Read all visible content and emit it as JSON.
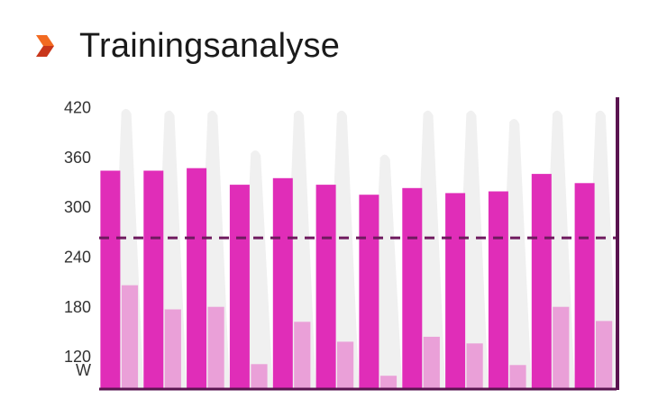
{
  "header": {
    "title": "Trainingsanalyse",
    "icon": "chevron-right-icon"
  },
  "colors": {
    "bar_primary": "#e02db8",
    "bar_secondary": "#eaa0d8",
    "ghost": "#f0f0f0",
    "threshold": "#6e1a5e",
    "axis": "#5a1450",
    "icon_top": "#f26a21",
    "icon_bottom": "#c8361b"
  },
  "chart_data": {
    "type": "bar",
    "unit": "W",
    "yticks": [
      120,
      180,
      240,
      300,
      360,
      420
    ],
    "ylim": [
      80,
      440
    ],
    "threshold": 262,
    "series": [
      {
        "values": [
          343,
          343,
          346,
          326,
          334,
          326,
          314,
          322,
          316,
          318,
          339,
          328
        ]
      },
      {
        "values": [
          205,
          176,
          179,
          110,
          161,
          137,
          96,
          143,
          135,
          109,
          179,
          162
        ]
      }
    ],
    "ghost_peaks": [
      420,
      418,
      418,
      370,
      418,
      418,
      365,
      418,
      418,
      408,
      418,
      418
    ]
  }
}
